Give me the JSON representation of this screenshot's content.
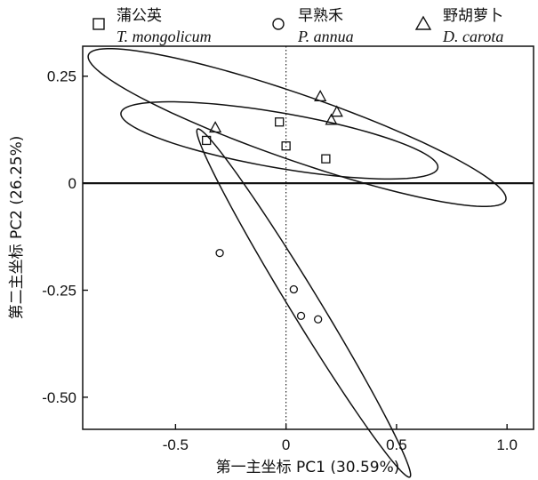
{
  "chart_data": {
    "type": "scatter",
    "xlabel": "第一主坐标 PC1 (30.59%)",
    "ylabel": "第二主坐标 PC2 (26.25%)",
    "xlim": [
      -0.92,
      1.12
    ],
    "ylim": [
      -0.575,
      0.32
    ],
    "x_ticks": [
      -0.5,
      0,
      0.5,
      1.0
    ],
    "x_tick_labels": [
      "-0.5",
      "0",
      "0.5",
      "1.0"
    ],
    "y_ticks": [
      0.25,
      0,
      -0.25,
      -0.5
    ],
    "y_tick_labels": [
      "0.25",
      "0",
      "-0.25",
      "-0.50"
    ],
    "grid": false,
    "reference_lines": {
      "y0": "solid",
      "x0": "dotted"
    },
    "legend_position": "top",
    "series": [
      {
        "name_cn": "蒲公英",
        "name_latin": "T. mongolicum",
        "marker": "square",
        "points": [
          [
            -0.36,
            0.1
          ],
          [
            -0.03,
            0.143
          ],
          [
            0.0,
            0.087
          ],
          [
            0.18,
            0.057
          ]
        ],
        "ellipse": {
          "center": [
            -0.03,
            0.1
          ],
          "semi_major": 0.72,
          "semi_minor": 0.065,
          "angle_deg": -5
        }
      },
      {
        "name_cn": "早熟禾",
        "name_latin": "P. annua",
        "marker": "circle",
        "points": [
          [
            -0.3,
            -0.163
          ],
          [
            0.035,
            -0.248
          ],
          [
            0.068,
            -0.31
          ],
          [
            0.145,
            -0.318
          ]
        ],
        "ellipse": {
          "center": [
            0.08,
            -0.28
          ],
          "semi_major": 0.63,
          "semi_minor": 0.05,
          "angle_deg": -40
        }
      },
      {
        "name_cn": "野胡萝卜",
        "name_latin": "D. carota",
        "marker": "triangle",
        "points": [
          [
            -0.32,
            0.13
          ],
          [
            0.155,
            0.203
          ],
          [
            0.205,
            0.148
          ],
          [
            0.23,
            0.167
          ]
        ],
        "ellipse": {
          "center": [
            0.05,
            0.13
          ],
          "semi_major": 0.96,
          "semi_minor": 0.08,
          "angle_deg": -10
        }
      }
    ]
  }
}
